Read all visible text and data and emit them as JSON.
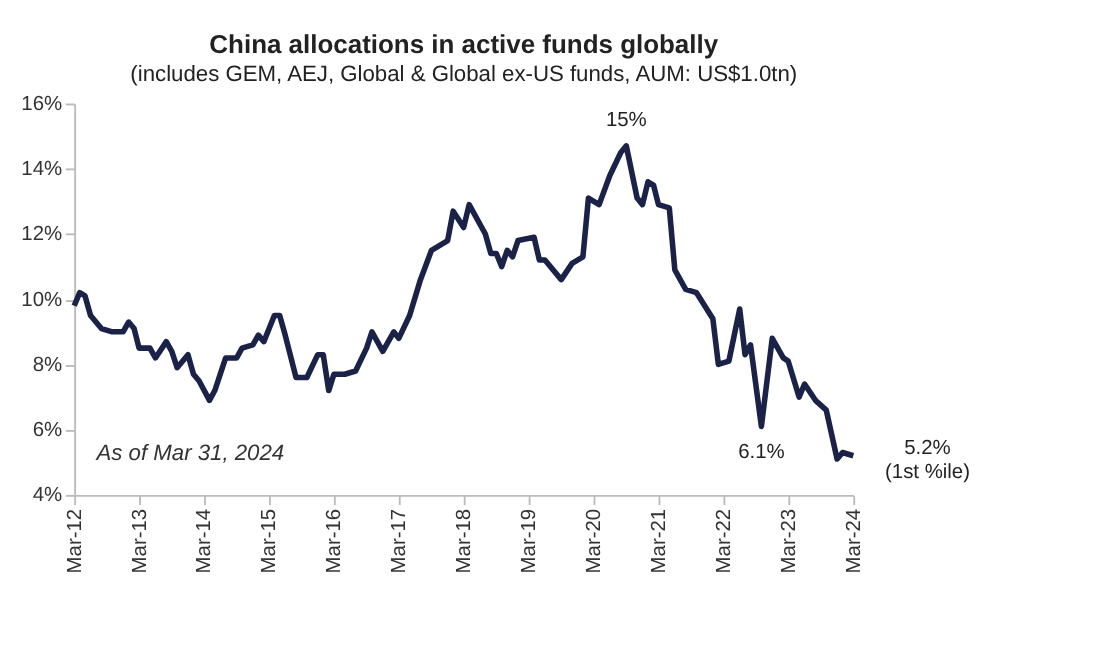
{
  "chart_data": {
    "type": "line",
    "title": "China allocations in active funds globally",
    "subtitle": "(includes GEM, AEJ, Global & Global ex-US funds, AUM: US$1.0tn)",
    "x": [
      "2012-03",
      "2012-04",
      "2012-05",
      "2012-06",
      "2012-08",
      "2012-10",
      "2012-12",
      "2013-01",
      "2013-02",
      "2013-03",
      "2013-05",
      "2013-06",
      "2013-08",
      "2013-09",
      "2013-10",
      "2013-12",
      "2014-01",
      "2014-02",
      "2014-04",
      "2014-05",
      "2014-07",
      "2014-09",
      "2014-10",
      "2014-12",
      "2015-01",
      "2015-02",
      "2015-04",
      "2015-05",
      "2015-06",
      "2015-08",
      "2015-10",
      "2015-12",
      "2016-01",
      "2016-02",
      "2016-03",
      "2016-05",
      "2016-07",
      "2016-09",
      "2016-10",
      "2016-12",
      "2017-01",
      "2017-02",
      "2017-03",
      "2017-05",
      "2017-07",
      "2017-09",
      "2017-12",
      "2018-01",
      "2018-03",
      "2018-04",
      "2018-07",
      "2018-08",
      "2018-09",
      "2018-10",
      "2018-11",
      "2018-12",
      "2019-01",
      "2019-04",
      "2019-05",
      "2019-06",
      "2019-09",
      "2019-11",
      "2020-01",
      "2020-02",
      "2020-04",
      "2020-06",
      "2020-08",
      "2020-09",
      "2020-11",
      "2020-12",
      "2021-01",
      "2021-02",
      "2021-03",
      "2021-05",
      "2021-06",
      "2021-08",
      "2021-10",
      "2022-01",
      "2022-02",
      "2022-04",
      "2022-06",
      "2022-07",
      "2022-08",
      "2022-10",
      "2022-12",
      "2023-02",
      "2023-03",
      "2023-05",
      "2023-06",
      "2023-08",
      "2023-10",
      "2023-12",
      "2024-01",
      "2024-03"
    ],
    "series": [
      {
        "color": "#1b2247",
        "values": [
          9.8,
          10.2,
          10.1,
          9.5,
          9.1,
          9.0,
          9.0,
          9.3,
          9.1,
          8.5,
          8.5,
          8.2,
          8.7,
          8.4,
          7.9,
          8.3,
          7.7,
          7.5,
          6.9,
          7.2,
          8.2,
          8.2,
          8.5,
          8.6,
          8.9,
          8.7,
          9.5,
          9.5,
          8.9,
          7.6,
          7.6,
          8.3,
          8.3,
          7.2,
          7.7,
          7.7,
          7.8,
          8.5,
          9.0,
          8.4,
          8.7,
          9.0,
          8.8,
          9.5,
          10.6,
          11.5,
          11.8,
          12.7,
          12.2,
          12.9,
          12.0,
          11.4,
          11.4,
          11.0,
          11.5,
          11.3,
          11.8,
          11.9,
          11.2,
          11.2,
          10.6,
          11.1,
          11.3,
          13.1,
          12.9,
          13.8,
          14.5,
          14.7,
          13.1,
          12.9,
          13.6,
          13.5,
          12.9,
          12.8,
          10.9,
          10.3,
          10.2,
          9.4,
          8.0,
          8.1,
          9.7,
          8.3,
          8.6,
          6.1,
          8.8,
          8.2,
          8.1,
          7.0,
          7.4,
          6.9,
          6.6,
          5.1,
          5.3,
          5.2
        ]
      }
    ],
    "xlim": [
      "2012-03",
      "2024-03"
    ],
    "xticks": [
      {
        "value": "2012-03",
        "label": "Mar-12"
      },
      {
        "value": "2013-03",
        "label": "Mar-13"
      },
      {
        "value": "2014-03",
        "label": "Mar-14"
      },
      {
        "value": "2015-03",
        "label": "Mar-15"
      },
      {
        "value": "2016-03",
        "label": "Mar-16"
      },
      {
        "value": "2017-03",
        "label": "Mar-17"
      },
      {
        "value": "2018-03",
        "label": "Mar-18"
      },
      {
        "value": "2019-03",
        "label": "Mar-19"
      },
      {
        "value": "2020-03",
        "label": "Mar-20"
      },
      {
        "value": "2021-03",
        "label": "Mar-21"
      },
      {
        "value": "2022-03",
        "label": "Mar-22"
      },
      {
        "value": "2023-03",
        "label": "Mar-23"
      },
      {
        "value": "2024-03",
        "label": "Mar-24"
      }
    ],
    "ylim": [
      4,
      16
    ],
    "yticks": [
      {
        "value": 4,
        "label": "4%"
      },
      {
        "value": 6,
        "label": "6%"
      },
      {
        "value": 8,
        "label": "8%"
      },
      {
        "value": 10,
        "label": "10%"
      },
      {
        "value": 12,
        "label": "12%"
      },
      {
        "value": 14,
        "label": "14%"
      },
      {
        "value": 16,
        "label": "16%"
      }
    ],
    "annotations": [
      {
        "text": "15%",
        "x": "2020-09",
        "y": 14.7
      },
      {
        "text": "6.1%",
        "x": "2022-10",
        "y": 6.1
      },
      {
        "text": "5.2%\n(1st %ile)",
        "x": "2024-03",
        "y": 5.2
      },
      "As of Mar 31, 2024"
    ],
    "grid": false,
    "legend": false,
    "marker": "none",
    "line_style": "solid"
  }
}
